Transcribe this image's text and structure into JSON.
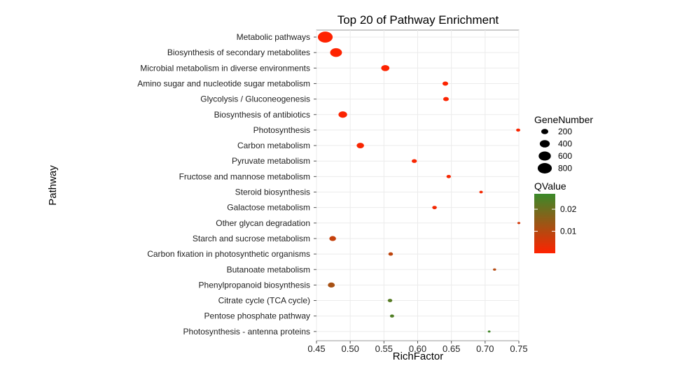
{
  "chart_data": {
    "type": "scatter",
    "title": "Top 20 of Pathway Enrichment",
    "xlabel": "RichFactor",
    "ylabel": "Pathway",
    "xlim": [
      0.45,
      0.75
    ],
    "xticks": [
      "0.45",
      "0.50",
      "0.55",
      "0.60",
      "0.65",
      "0.70",
      "0.75"
    ],
    "grid": true,
    "pathways": [
      {
        "name": "Metabolic pathways",
        "rich_factor": 0.463,
        "gene_number": 880,
        "qvalue": 0.0001
      },
      {
        "name": "Biosynthesis of secondary metabolites",
        "rich_factor": 0.479,
        "gene_number": 560,
        "qvalue": 0.0002
      },
      {
        "name": "Microbial metabolism in diverse environments",
        "rich_factor": 0.552,
        "gene_number": 270,
        "qvalue": 0.0003
      },
      {
        "name": "Amino sugar and nucleotide sugar metabolism",
        "rich_factor": 0.641,
        "gene_number": 130,
        "qvalue": 0.0004
      },
      {
        "name": "Glycolysis / Gluconeogenesis",
        "rich_factor": 0.642,
        "gene_number": 125,
        "qvalue": 0.0005
      },
      {
        "name": "Biosynthesis of antibiotics",
        "rich_factor": 0.489,
        "gene_number": 300,
        "qvalue": 0.0006
      },
      {
        "name": "Photosynthesis",
        "rich_factor": 0.749,
        "gene_number": 70,
        "qvalue": 0.0008
      },
      {
        "name": "Carbon metabolism",
        "rich_factor": 0.515,
        "gene_number": 220,
        "qvalue": 0.0009
      },
      {
        "name": "Pyruvate metabolism",
        "rich_factor": 0.595,
        "gene_number": 105,
        "qvalue": 0.001
      },
      {
        "name": "Fructose and mannose metabolism",
        "rich_factor": 0.646,
        "gene_number": 80,
        "qvalue": 0.0012
      },
      {
        "name": "Steroid biosynthesis",
        "rich_factor": 0.694,
        "gene_number": 50,
        "qvalue": 0.0015
      },
      {
        "name": "Galactose metabolism",
        "rich_factor": 0.625,
        "gene_number": 85,
        "qvalue": 0.0018
      },
      {
        "name": "Other glycan degradation",
        "rich_factor": 0.75,
        "gene_number": 35,
        "qvalue": 0.006
      },
      {
        "name": "Starch and sucrose metabolism",
        "rich_factor": 0.474,
        "gene_number": 180,
        "qvalue": 0.008
      },
      {
        "name": "Carbon fixation in photosynthetic organisms",
        "rich_factor": 0.56,
        "gene_number": 85,
        "qvalue": 0.009
      },
      {
        "name": "Butanoate metabolism",
        "rich_factor": 0.714,
        "gene_number": 40,
        "qvalue": 0.01
      },
      {
        "name": "Phenylpropanoid biosynthesis",
        "rich_factor": 0.472,
        "gene_number": 190,
        "qvalue": 0.012
      },
      {
        "name": "Citrate cycle (TCA cycle)",
        "rich_factor": 0.559,
        "gene_number": 85,
        "qvalue": 0.023
      },
      {
        "name": "Pentose phosphate pathway",
        "rich_factor": 0.562,
        "gene_number": 70,
        "qvalue": 0.024
      },
      {
        "name": "Photosynthesis - antenna proteins",
        "rich_factor": 0.706,
        "gene_number": 30,
        "qvalue": 0.026
      }
    ],
    "legend_size": {
      "title": "GeneNumber",
      "labels": [
        "200",
        "400",
        "600",
        "800"
      ],
      "values": [
        200,
        400,
        600,
        800
      ]
    },
    "legend_color": {
      "title": "QValue",
      "labels": [
        "0.02",
        "0.01"
      ],
      "values": [
        0.02,
        0.01
      ],
      "range": [
        0,
        0.027
      ],
      "low_color": "#ff2200",
      "high_color": "#3a8a2a"
    },
    "legend_position": "right"
  }
}
